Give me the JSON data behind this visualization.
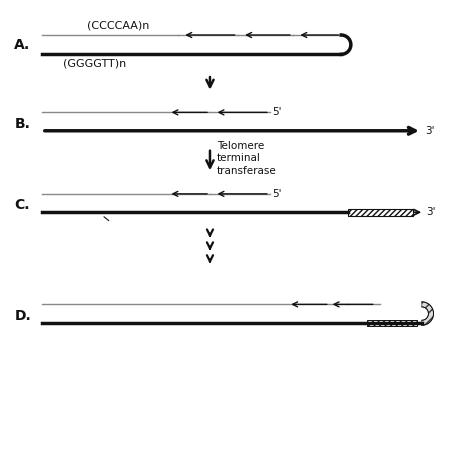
{
  "bg_color": "#ffffff",
  "dark": "#111111",
  "gray": "#888888",
  "label_A": "A.",
  "label_B": "B.",
  "label_C": "C.",
  "label_D": "D.",
  "text_CCCCAA": "(CCCCAA)n",
  "text_GGGGTT": "(GGGGTT)n",
  "text_5prime": "5'",
  "text_3prime": "3'",
  "text_telomerase": "Telomere\nterminal\ntransferase",
  "figsize": [
    4.66,
    4.66
  ],
  "dpi": 100
}
